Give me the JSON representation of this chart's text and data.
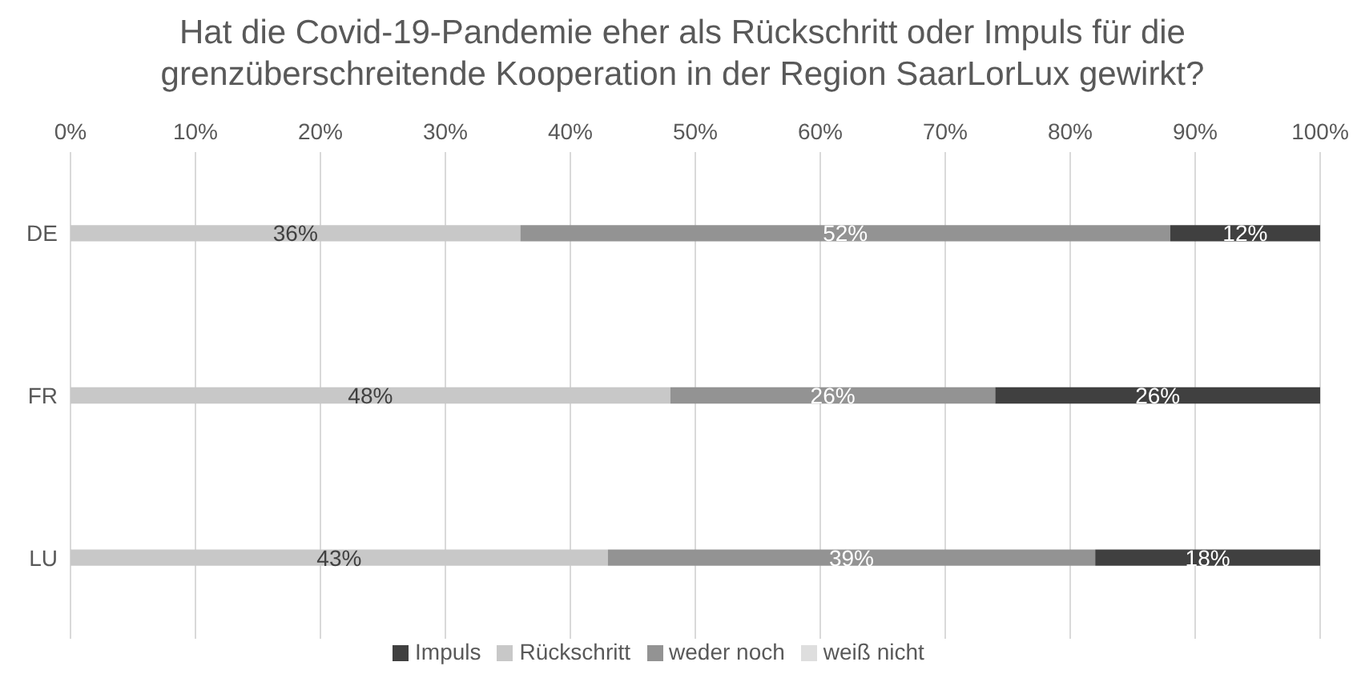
{
  "chart_data": {
    "type": "bar",
    "orientation": "horizontal",
    "stacked": true,
    "title": "Hat die Covid-19-Pandemie eher als Rückschritt oder Impuls für die grenzüberschreitende Kooperation in der Region SaarLorLux gewirkt?",
    "categories": [
      "DE",
      "FR",
      "LU"
    ],
    "series": [
      {
        "name": "Rückschritt",
        "color": "#c8c8c8",
        "values": [
          36,
          48,
          43
        ],
        "value_labels": [
          "36%",
          "48%",
          "43%"
        ]
      },
      {
        "name": "weder noch",
        "color": "#939393",
        "values": [
          52,
          26,
          39
        ],
        "value_labels": [
          "52%",
          "26%",
          "39%"
        ]
      },
      {
        "name": "Impuls",
        "color": "#404040",
        "values": [
          12,
          26,
          18
        ],
        "value_labels": [
          "12%",
          "26%",
          "18%"
        ]
      },
      {
        "name": "weiß nicht",
        "color": "#dedede",
        "values": [
          null,
          null,
          null
        ]
      }
    ],
    "xlim": [
      0,
      100
    ],
    "xticks": [
      {
        "value": 0,
        "label": "0%"
      },
      {
        "value": 10,
        "label": "10%"
      },
      {
        "value": 20,
        "label": "20%"
      },
      {
        "value": 30,
        "label": "30%"
      },
      {
        "value": 40,
        "label": "40%"
      },
      {
        "value": 50,
        "label": "50%"
      },
      {
        "value": 60,
        "label": "60%"
      },
      {
        "value": 70,
        "label": "70%"
      },
      {
        "value": 80,
        "label": "80%"
      },
      {
        "value": 90,
        "label": "90%"
      },
      {
        "value": 100,
        "label": "100%"
      }
    ],
    "grid": "x",
    "legend": "bottom"
  }
}
